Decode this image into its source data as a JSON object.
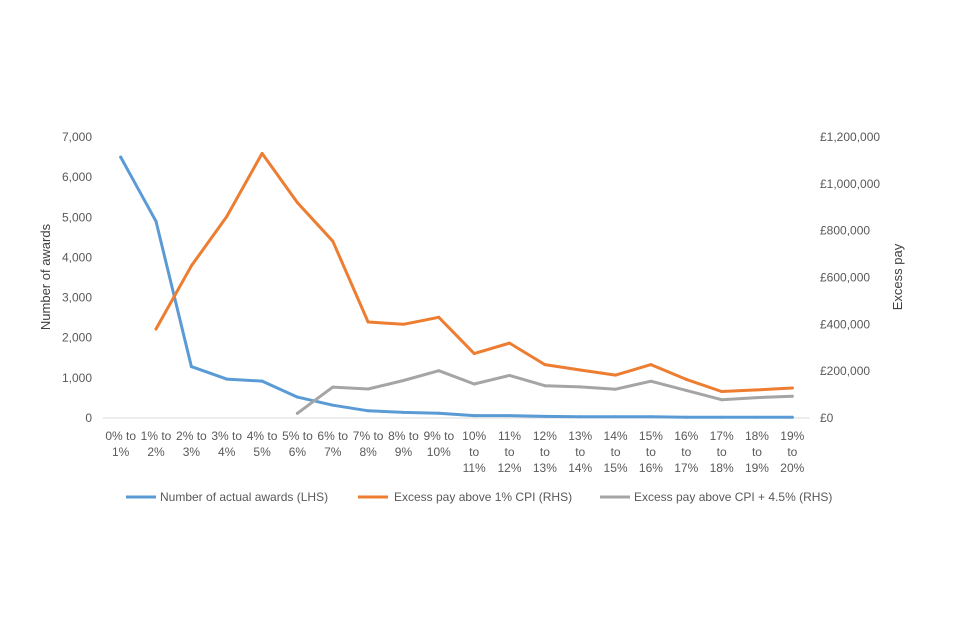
{
  "chart_data": {
    "type": "line",
    "title": "",
    "xlabel": "",
    "ylabel": "Number of awards",
    "y2label": "Excess pay",
    "ylim": [
      0,
      7000
    ],
    "y2lim": [
      0,
      1200000
    ],
    "yticks": [
      "0",
      "1,000",
      "2,000",
      "3,000",
      "4,000",
      "5,000",
      "6,000",
      "7,000"
    ],
    "y2ticks": [
      "£0",
      "£200,000",
      "£400,000",
      "£600,000",
      "£800,000",
      "£1,000,000",
      "£1,200,000"
    ],
    "grid": false,
    "legend_position": "bottom",
    "categories": [
      [
        "0% to",
        "1%"
      ],
      [
        "1% to",
        "2%"
      ],
      [
        "2% to",
        "3%"
      ],
      [
        "3% to",
        "4%"
      ],
      [
        "4% to",
        "5%"
      ],
      [
        "5% to",
        "6%"
      ],
      [
        "6% to",
        "7%"
      ],
      [
        "7% to",
        "8%"
      ],
      [
        "8% to",
        "9%"
      ],
      [
        "9% to",
        "10%"
      ],
      [
        "10%",
        "to",
        "11%"
      ],
      [
        "11%",
        "to",
        "12%"
      ],
      [
        "12%",
        "to",
        "13%"
      ],
      [
        "13%",
        "to",
        "14%"
      ],
      [
        "14%",
        "to",
        "15%"
      ],
      [
        "15%",
        "to",
        "16%"
      ],
      [
        "16%",
        "to",
        "17%"
      ],
      [
        "17%",
        "to",
        "18%"
      ],
      [
        "18%",
        "to",
        "19%"
      ],
      [
        "19%",
        "to",
        "20%"
      ]
    ],
    "series": [
      {
        "name": "Number of actual awards (LHS)",
        "axis": "left",
        "color": "#5B9BD5",
        "values": [
          6500,
          4900,
          1280,
          970,
          920,
          520,
          320,
          180,
          140,
          120,
          60,
          60,
          40,
          30,
          30,
          30,
          20,
          20,
          20,
          20
        ]
      },
      {
        "name": "Excess pay above 1% CPI (RHS)",
        "axis": "right",
        "color": "#ED7D31",
        "values": [
          null,
          380000,
          650000,
          860000,
          1130000,
          920000,
          755000,
          410000,
          400000,
          430000,
          275000,
          320000,
          228000,
          205000,
          183000,
          228000,
          165000,
          113000,
          120000,
          128000
        ]
      },
      {
        "name": "Excess pay above CPI + 4.5% (RHS)",
        "axis": "right",
        "color": "#A5A5A5",
        "values": [
          null,
          null,
          null,
          null,
          null,
          20000,
          132000,
          124000,
          160000,
          202000,
          145000,
          182000,
          138000,
          133000,
          123000,
          157000,
          118000,
          78000,
          87000,
          93000
        ]
      }
    ]
  }
}
